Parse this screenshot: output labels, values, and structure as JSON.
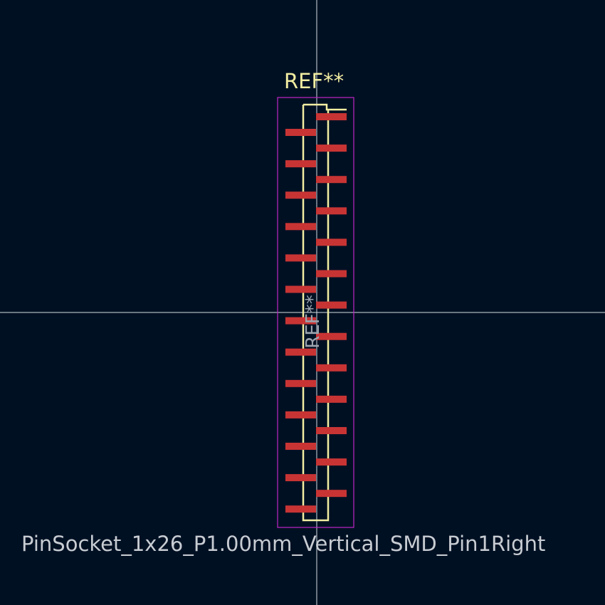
{
  "reference_designator": "REF**",
  "fab_reference": "REF**",
  "footprint_name": "PinSocket_1x26_P1.00mm_Vertical_SMD_Pin1Right",
  "pins": {
    "count": 26,
    "pin1_side": "right"
  },
  "colors": {
    "background": "#001023",
    "crosshair": "#d6dbe2",
    "silkscreen": "#f2eda1",
    "courtyard": "#c125c6",
    "pad": "#c83434",
    "fab_text": "#9ca3ad",
    "name_text": "#c8ccd2"
  }
}
